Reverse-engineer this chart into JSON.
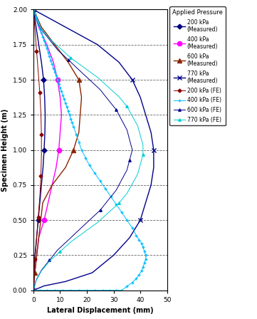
{
  "title": "Applied Pressure",
  "xlabel": "Lateral Displacement (mm)",
  "ylabel": "Specimen Height (m)",
  "xlim": [
    0,
    50
  ],
  "ylim": [
    0,
    2
  ],
  "xticks": [
    0,
    10,
    20,
    30,
    40,
    50
  ],
  "yticks": [
    0,
    0.25,
    0.5,
    0.75,
    1.0,
    1.25,
    1.5,
    1.75,
    2.0
  ],
  "series": [
    {
      "label": "200 kPa\n(Measured)",
      "color": "#000080",
      "marker": "D",
      "markersize": 3.5,
      "linestyle": "-",
      "linewidth": 1.0,
      "x": [
        0,
        1.0,
        2.0,
        3.0,
        3.8,
        4.2,
        4.4,
        4.3,
        4.0,
        3.6,
        3.0,
        2.4,
        1.8,
        1.2,
        0.6,
        0.2,
        0
      ],
      "y": [
        2.0,
        1.875,
        1.75,
        1.625,
        1.5,
        1.375,
        1.25,
        1.125,
        1.0,
        0.875,
        0.75,
        0.625,
        0.5,
        0.375,
        0.25,
        0.125,
        0
      ],
      "markevery": [
        0,
        4,
        8,
        12,
        16
      ]
    },
    {
      "label": "400 kPa\n(Measured)",
      "color": "#FF00FF",
      "marker": "o",
      "markersize": 4.5,
      "linestyle": "-",
      "linewidth": 1.0,
      "x": [
        0,
        2.0,
        5.0,
        7.5,
        9.0,
        10.0,
        10.5,
        10.0,
        9.5,
        8.5,
        7.0,
        5.5,
        4.0,
        2.0,
        0.5,
        0
      ],
      "y": [
        2.0,
        1.875,
        1.75,
        1.625,
        1.5,
        1.375,
        1.25,
        1.125,
        1.0,
        0.875,
        0.75,
        0.625,
        0.5,
        0.375,
        0.125,
        0
      ],
      "markevery": [
        0,
        4,
        8,
        12,
        15
      ]
    },
    {
      "label": "600 kPa\n(Measured)",
      "color": "#8B2500",
      "marker": "^",
      "markersize": 4.5,
      "linestyle": "-",
      "linewidth": 1.0,
      "x": [
        0,
        3.0,
        8.0,
        13.0,
        17.0,
        18.0,
        17.5,
        17.0,
        15.0,
        12.0,
        7.0,
        3.5,
        0.5,
        0
      ],
      "y": [
        2.0,
        1.875,
        1.75,
        1.625,
        1.5,
        1.375,
        1.25,
        1.125,
        1.0,
        0.875,
        0.75,
        0.625,
        0.125,
        0
      ],
      "markevery": [
        0,
        4,
        8,
        12,
        13
      ]
    },
    {
      "label": "770 kPa\n(Measured)",
      "color": "#00008B",
      "marker": "x",
      "markersize": 5,
      "linestyle": "-",
      "linewidth": 1.0,
      "x": [
        0,
        12,
        24,
        32,
        37,
        40,
        42,
        44,
        45,
        45,
        44,
        42,
        40,
        36,
        30,
        22,
        12,
        4,
        0
      ],
      "y": [
        2.0,
        1.875,
        1.75,
        1.625,
        1.5,
        1.375,
        1.25,
        1.125,
        1.0,
        0.875,
        0.75,
        0.625,
        0.5,
        0.375,
        0.25,
        0.125,
        0.0625,
        0.03125,
        0
      ],
      "markevery": [
        0,
        4,
        8,
        12,
        18
      ]
    },
    {
      "label": "200 kPa (FE)",
      "color": "#8B0000",
      "marker": "D",
      "markersize": 2.5,
      "linestyle": "-",
      "linewidth": 0.7,
      "x": [
        0,
        0.3,
        0.6,
        0.9,
        1.2,
        1.5,
        1.8,
        2.1,
        2.4,
        2.6,
        2.8,
        2.9,
        3.0,
        3.0,
        3.0,
        2.9,
        2.8,
        2.6,
        2.4,
        2.1,
        1.8,
        1.5,
        1.2,
        0.9,
        0.6,
        0.3,
        0.1,
        0
      ],
      "y": [
        2.0,
        1.926,
        1.852,
        1.778,
        1.704,
        1.63,
        1.556,
        1.481,
        1.407,
        1.333,
        1.259,
        1.185,
        1.111,
        1.037,
        0.963,
        0.889,
        0.815,
        0.741,
        0.667,
        0.593,
        0.519,
        0.444,
        0.37,
        0.296,
        0.222,
        0.148,
        0.074,
        0
      ],
      "markevery": 4
    },
    {
      "label": "400 kPa (FE)",
      "color": "#00BFFF",
      "marker": "+",
      "markersize": 3.5,
      "linestyle": "-",
      "linewidth": 0.7,
      "x": [
        0,
        0.5,
        1.0,
        1.5,
        2.0,
        2.5,
        3.0,
        3.5,
        4.0,
        4.5,
        5.0,
        5.5,
        6.0,
        6.5,
        7.0,
        7.5,
        8.0,
        8.5,
        9.0,
        9.5,
        10.0,
        10.5,
        11.0,
        11.5,
        12.0,
        12.5,
        13.0,
        13.5,
        14.0,
        14.5,
        15.0,
        16.0,
        17.0,
        18.0,
        19.5,
        21.0,
        23.0,
        25.0,
        27.0,
        29.0,
        31.0,
        33.0,
        35.0,
        37.0,
        38.5,
        39.5,
        40.5,
        41.0,
        41.5,
        42.0,
        42.0,
        41.5,
        41.0,
        40.5,
        39.5,
        38.5,
        37.0,
        35.0,
        33.0,
        31.0,
        28.5,
        26.0,
        23.0,
        20.0,
        17.0,
        14.0,
        11.0,
        8.0,
        5.0,
        2.5,
        0.5,
        0
      ],
      "y": [
        2.0,
        1.972,
        1.944,
        1.917,
        1.889,
        1.861,
        1.833,
        1.806,
        1.778,
        1.75,
        1.722,
        1.694,
        1.667,
        1.639,
        1.611,
        1.583,
        1.556,
        1.528,
        1.5,
        1.472,
        1.444,
        1.417,
        1.389,
        1.361,
        1.333,
        1.306,
        1.278,
        1.25,
        1.222,
        1.194,
        1.167,
        1.111,
        1.056,
        1.0,
        0.944,
        0.889,
        0.833,
        0.778,
        0.722,
        0.667,
        0.611,
        0.556,
        0.5,
        0.444,
        0.389,
        0.361,
        0.333,
        0.306,
        0.278,
        0.25,
        0.222,
        0.194,
        0.167,
        0.139,
        0.111,
        0.083,
        0.056,
        0.028,
        0.0,
        0,
        0,
        0,
        0,
        0,
        0,
        0,
        0,
        0,
        0,
        0,
        0,
        0
      ],
      "markevery": 1
    },
    {
      "label": "600 kPa (FE)",
      "color": "#00008B",
      "marker": "^",
      "markersize": 2.5,
      "linestyle": "-",
      "linewidth": 0.7,
      "x": [
        0,
        1,
        3,
        6,
        9,
        13,
        17,
        21,
        25,
        28,
        31,
        33,
        35,
        36,
        37,
        36,
        35,
        33,
        31,
        28,
        25,
        21,
        17,
        13,
        9,
        6,
        3,
        1,
        0
      ],
      "y": [
        2.0,
        1.929,
        1.857,
        1.786,
        1.714,
        1.643,
        1.571,
        1.5,
        1.429,
        1.357,
        1.286,
        1.214,
        1.143,
        1.071,
        1.0,
        0.929,
        0.857,
        0.786,
        0.714,
        0.643,
        0.571,
        0.5,
        0.429,
        0.357,
        0.286,
        0.214,
        0.143,
        0.071,
        0
      ],
      "markevery": 5
    },
    {
      "label": "770 kPa (FE)",
      "color": "#00CED1",
      "marker": "^",
      "markersize": 2.5,
      "linestyle": "-",
      "linewidth": 0.7,
      "x": [
        0,
        1,
        3,
        6,
        10,
        14,
        19,
        24,
        28,
        32,
        35,
        37,
        39,
        40,
        41,
        41,
        40,
        39,
        37,
        35,
        32,
        28,
        24,
        19,
        14,
        10,
        6,
        3,
        1,
        0
      ],
      "y": [
        2.0,
        1.931,
        1.862,
        1.793,
        1.724,
        1.655,
        1.586,
        1.517,
        1.448,
        1.379,
        1.31,
        1.241,
        1.172,
        1.103,
        1.034,
        0.966,
        0.897,
        0.828,
        0.759,
        0.69,
        0.621,
        0.552,
        0.483,
        0.414,
        0.345,
        0.276,
        0.207,
        0.138,
        0.069,
        0
      ],
      "markevery": 5
    }
  ]
}
